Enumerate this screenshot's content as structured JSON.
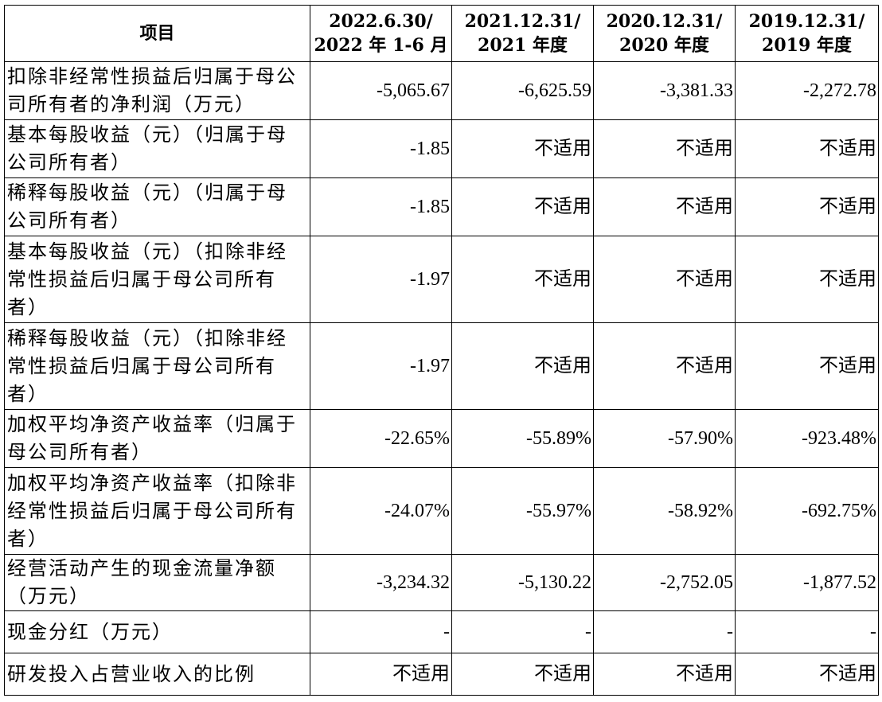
{
  "header": {
    "item": "项目",
    "periods": [
      {
        "line1": "2022.6.30/",
        "line2": "2022 年 1-6 月"
      },
      {
        "line1": "2021.12.31/",
        "line2": "2021 年度"
      },
      {
        "line1": "2020.12.31/",
        "line2": "2020 年度"
      },
      {
        "line1": "2019.12.31/",
        "line2": "2019 年度"
      }
    ]
  },
  "rows": [
    {
      "label": "扣除非经常性损益后归属于母公司所有者的净利润（万元）",
      "values": [
        "-5,065.67",
        "-6,625.59",
        "-3,381.33",
        "-2,272.78"
      ]
    },
    {
      "label": "基本每股收益（元）（归属于母公司所有者）",
      "values": [
        "-1.85",
        "不适用",
        "不适用",
        "不适用"
      ]
    },
    {
      "label": "稀释每股收益（元）（归属于母公司所有者）",
      "values": [
        "-1.85",
        "不适用",
        "不适用",
        "不适用"
      ]
    },
    {
      "label": "基本每股收益（元）（扣除非经常性损益后归属于母公司所有者）",
      "values": [
        "-1.97",
        "不适用",
        "不适用",
        "不适用"
      ]
    },
    {
      "label": "稀释每股收益（元）（扣除非经常性损益后归属于母公司所有者）",
      "values": [
        "-1.97",
        "不适用",
        "不适用",
        "不适用"
      ]
    },
    {
      "label": "加权平均净资产收益率（归属于母公司所有者）",
      "values": [
        "-22.65%",
        "-55.89%",
        "-57.90%",
        "-923.48%"
      ]
    },
    {
      "label": "加权平均净资产收益率（扣除非经常性损益后归属于母公司所有者）",
      "values": [
        "-24.07%",
        "-55.97%",
        "-58.92%",
        "-692.75%"
      ]
    },
    {
      "label": "经营活动产生的现金流量净额（万元）",
      "values": [
        "-3,234.32",
        "-5,130.22",
        "-2,752.05",
        "-1,877.52"
      ]
    },
    {
      "label": "现金分红（万元）",
      "values": [
        "-",
        "-",
        "-",
        "-"
      ]
    },
    {
      "label": "研发投入占营业收入的比例",
      "values": [
        "不适用",
        "不适用",
        "不适用",
        "不适用"
      ]
    }
  ]
}
